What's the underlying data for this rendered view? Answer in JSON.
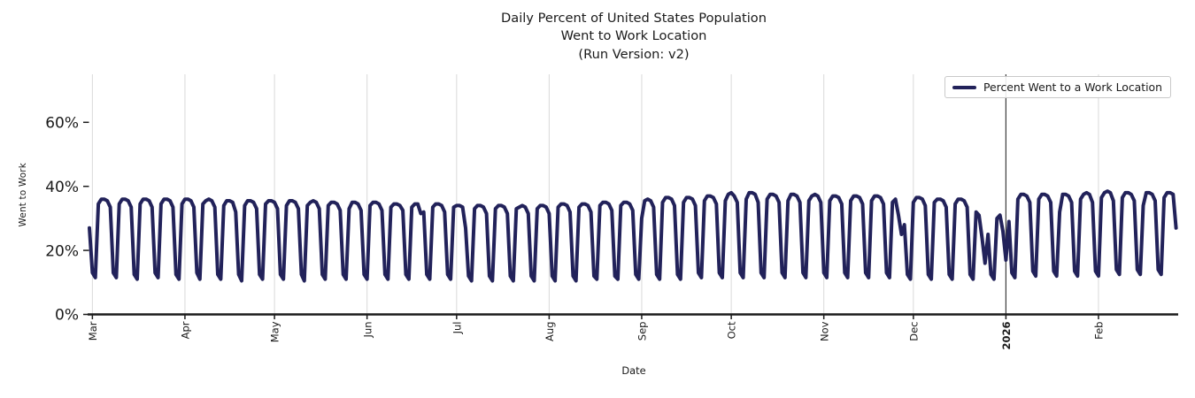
{
  "chart_data": {
    "type": "line",
    "title_lines": [
      "Daily Percent of United States Population",
      "Went to Work Location",
      "(Run Version: v2)"
    ],
    "xlabel": "Date",
    "ylabel": "Went to Work",
    "legend_label": "Percent Went to a Work Location",
    "legend_position": "upper right",
    "grid": "vertical-only",
    "line_color": "#22225a",
    "grid_color": "#d9d9d9",
    "axis_color": "#1c1c1c",
    "vline_color": "#3d3d3d",
    "ylim": [
      0,
      75
    ],
    "xlim_days": [
      0,
      364.7
    ],
    "y_ticks": [
      {
        "value": 0,
        "label": "0%"
      },
      {
        "value": 20,
        "label": "20%"
      },
      {
        "value": 40,
        "label": "40%"
      },
      {
        "value": 60,
        "label": "60%"
      }
    ],
    "x_ticks": [
      {
        "day": 1,
        "label": "Mar",
        "bold": false
      },
      {
        "day": 32,
        "label": "Apr",
        "bold": false
      },
      {
        "day": 62,
        "label": "May",
        "bold": false
      },
      {
        "day": 93,
        "label": "Jun",
        "bold": false
      },
      {
        "day": 123,
        "label": "Jul",
        "bold": false
      },
      {
        "day": 154,
        "label": "Aug",
        "bold": false
      },
      {
        "day": 185,
        "label": "Sep",
        "bold": false
      },
      {
        "day": 215,
        "label": "Oct",
        "bold": false
      },
      {
        "day": 246,
        "label": "Nov",
        "bold": false
      },
      {
        "day": 276,
        "label": "Dec",
        "bold": false
      },
      {
        "day": 307,
        "label": "2026",
        "bold": true
      },
      {
        "day": 338,
        "label": "Feb",
        "bold": false
      }
    ],
    "year_divider_day": 307,
    "series_name": "Percent Went to a Work Location",
    "start_date": "2025-02-28",
    "value_unit": "percent of population",
    "daily_values": [
      27,
      13,
      11.5,
      34.5,
      36,
      36,
      35.5,
      33.5,
      13,
      11.5,
      34.5,
      36,
      36,
      35.5,
      33.5,
      12.5,
      11,
      34.5,
      36,
      36,
      35.5,
      33.5,
      13,
      11.5,
      34.5,
      36,
      36,
      35.5,
      33.5,
      12.5,
      11,
      34.5,
      36,
      36,
      35.5,
      33.5,
      13,
      11,
      34.5,
      35.5,
      36,
      35.5,
      33.5,
      12.5,
      11,
      34,
      35.5,
      35.5,
      35,
      32,
      12.5,
      10.5,
      34,
      35.5,
      35.5,
      35,
      33,
      12.5,
      11,
      34.5,
      35.5,
      35.5,
      35,
      33,
      12.5,
      11,
      34,
      35.5,
      35.5,
      35,
      33,
      12.5,
      10.5,
      34,
      35,
      35.5,
      35,
      33,
      12.5,
      11,
      34,
      35,
      35,
      34.5,
      32.5,
      12.5,
      11,
      33,
      35,
      35,
      34.5,
      32.5,
      12.5,
      11,
      34,
      35,
      35,
      34.5,
      32.5,
      12.5,
      11,
      33.5,
      34.5,
      34.5,
      34,
      32.5,
      12.5,
      11,
      33.5,
      34.5,
      34.5,
      31.5,
      32,
      12.5,
      11,
      33.5,
      34.5,
      34.5,
      34,
      32,
      12.5,
      11,
      33.5,
      34,
      34,
      33.5,
      27,
      12,
      10.5,
      33,
      34,
      34,
      33.5,
      31.5,
      12,
      10.5,
      33,
      34,
      34,
      33.5,
      31.5,
      12,
      10.5,
      33,
      33.5,
      34,
      33.5,
      31.5,
      12,
      10.5,
      33,
      34,
      34,
      33.5,
      31.5,
      12,
      10.5,
      33.5,
      34.5,
      34.5,
      34,
      32,
      12,
      10.5,
      33.5,
      34.5,
      34.5,
      34,
      32,
      12,
      11,
      34,
      35,
      35,
      34.5,
      32.5,
      12,
      11,
      34,
      35,
      35,
      34.5,
      32.5,
      12.5,
      11,
      30,
      35.5,
      36,
      35.5,
      33.5,
      12.5,
      11,
      35,
      36.5,
      36.5,
      36,
      34,
      12.5,
      11,
      35,
      36.5,
      36.5,
      36,
      34,
      13,
      11.5,
      35.5,
      37,
      37,
      36.5,
      34.5,
      13,
      11.5,
      35.5,
      37.5,
      38,
      37,
      35,
      13,
      11.5,
      36,
      38,
      38,
      37.5,
      35,
      13,
      11.5,
      36,
      37.5,
      37.5,
      37,
      35,
      13,
      11.5,
      35.5,
      37.5,
      37.5,
      37,
      35,
      13,
      11.5,
      35.5,
      37,
      37.5,
      37,
      35,
      13,
      11.5,
      35.5,
      37,
      37,
      36.5,
      34.5,
      13,
      11.5,
      35.5,
      37,
      37,
      36.5,
      34.5,
      13,
      11.5,
      35.5,
      37,
      37,
      36.5,
      34.5,
      13,
      11.5,
      35,
      36,
      31,
      25,
      28,
      12.5,
      11,
      35,
      36.5,
      36.5,
      36,
      34,
      12.5,
      11,
      35,
      36,
      36,
      35.5,
      33.5,
      12.5,
      11,
      34.5,
      36,
      36,
      35.5,
      33.5,
      12.5,
      11,
      32,
      31,
      24,
      16,
      25,
      12.5,
      11,
      30,
      31,
      26,
      17,
      29,
      13,
      11.5,
      36,
      37.5,
      37.5,
      37,
      35,
      13.5,
      12,
      36,
      37.5,
      37.5,
      37,
      35,
      13.5,
      12,
      32,
      37.5,
      37.5,
      37,
      35,
      13.5,
      12,
      36,
      37.5,
      38,
      37.5,
      35,
      13.5,
      12,
      36.5,
      38,
      38.5,
      38,
      35.5,
      14,
      12.5,
      36.5,
      38,
      38,
      37.5,
      35.5,
      14,
      12.5,
      34,
      38,
      38,
      37.5,
      35.5,
      14,
      12.5,
      36.5,
      38,
      38,
      37.5,
      27
    ]
  }
}
